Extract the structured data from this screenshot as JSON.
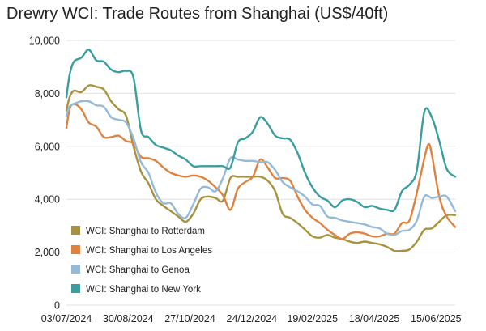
{
  "chart_data": {
    "type": "line",
    "title": "Drewry WCI: Trade Routes from Shanghai (US$/40ft)",
    "xlabel": "",
    "ylabel": "",
    "ylim": [
      0,
      10000
    ],
    "yticks": [
      0,
      2000,
      4000,
      6000,
      8000,
      10000
    ],
    "ytick_labels": [
      "0",
      "2,000",
      "4,000",
      "6,000",
      "8,000",
      "10,000"
    ],
    "xlim": [
      "03/07/2024",
      "03/07/2025"
    ],
    "xticks": [
      "03/07/2024",
      "30/08/2024",
      "27/10/2024",
      "24/12/2024",
      "19/02/2025",
      "18/04/2025",
      "15/06/2025"
    ],
    "grid": "horizontal",
    "legend_position": "bottom-left",
    "colors": {
      "rotterdam": "#a8923f",
      "los_angeles": "#e0823f",
      "genoa": "#94bada",
      "new_york": "#3a9ea0"
    },
    "series": [
      {
        "name": "WCI: Shanghai to Rotterdam",
        "color": "#a8923f",
        "points": [
          [
            "03/07/2024",
            7350
          ],
          [
            "06/07/2024",
            7850
          ],
          [
            "10/07/2024",
            8100
          ],
          [
            "17/07/2024",
            8050
          ],
          [
            "24/07/2024",
            8300
          ],
          [
            "31/07/2024",
            8250
          ],
          [
            "07/08/2024",
            8150
          ],
          [
            "14/08/2024",
            7700
          ],
          [
            "21/08/2024",
            7400
          ],
          [
            "28/08/2024",
            7150
          ],
          [
            "04/09/2024",
            6000
          ],
          [
            "11/09/2024",
            5050
          ],
          [
            "18/09/2024",
            4600
          ],
          [
            "25/09/2024",
            4000
          ],
          [
            "02/10/2024",
            3750
          ],
          [
            "09/10/2024",
            3550
          ],
          [
            "16/10/2024",
            3350
          ],
          [
            "23/10/2024",
            3150
          ],
          [
            "30/10/2024",
            3450
          ],
          [
            "06/11/2024",
            4000
          ],
          [
            "13/11/2024",
            4100
          ],
          [
            "20/11/2024",
            4050
          ],
          [
            "27/11/2024",
            3950
          ],
          [
            "04/12/2024",
            4800
          ],
          [
            "11/12/2024",
            4850
          ],
          [
            "18/12/2024",
            4850
          ],
          [
            "25/12/2024",
            4850
          ],
          [
            "01/01/2025",
            4850
          ],
          [
            "08/01/2025",
            4700
          ],
          [
            "15/01/2025",
            4300
          ],
          [
            "22/01/2025",
            3450
          ],
          [
            "29/01/2025",
            3300
          ],
          [
            "05/02/2025",
            3100
          ],
          [
            "12/02/2025",
            2850
          ],
          [
            "19/02/2025",
            2600
          ],
          [
            "26/02/2025",
            2550
          ],
          [
            "05/03/2025",
            2650
          ],
          [
            "12/03/2025",
            2550
          ],
          [
            "19/03/2025",
            2500
          ],
          [
            "26/03/2025",
            2400
          ],
          [
            "02/04/2025",
            2350
          ],
          [
            "09/04/2025",
            2400
          ],
          [
            "16/04/2025",
            2350
          ],
          [
            "23/04/2025",
            2300
          ],
          [
            "30/04/2025",
            2200
          ],
          [
            "07/05/2025",
            2050
          ],
          [
            "14/05/2025",
            2050
          ],
          [
            "21/05/2025",
            2100
          ],
          [
            "28/05/2025",
            2400
          ],
          [
            "04/06/2025",
            2850
          ],
          [
            "11/06/2025",
            2900
          ],
          [
            "18/06/2025",
            3150
          ],
          [
            "25/06/2025",
            3400
          ],
          [
            "03/07/2025",
            3400
          ]
        ]
      },
      {
        "name": "WCI: Shanghai to Los Angeles",
        "color": "#e0823f",
        "points": [
          [
            "03/07/2024",
            6700
          ],
          [
            "06/07/2024",
            7400
          ],
          [
            "10/07/2024",
            7600
          ],
          [
            "17/07/2024",
            7400
          ],
          [
            "24/07/2024",
            6900
          ],
          [
            "31/07/2024",
            6750
          ],
          [
            "07/08/2024",
            6350
          ],
          [
            "14/08/2024",
            6350
          ],
          [
            "21/08/2024",
            6400
          ],
          [
            "28/08/2024",
            6200
          ],
          [
            "04/09/2024",
            6100
          ],
          [
            "11/09/2024",
            5600
          ],
          [
            "18/09/2024",
            5550
          ],
          [
            "25/09/2024",
            5450
          ],
          [
            "02/10/2024",
            5200
          ],
          [
            "09/10/2024",
            5000
          ],
          [
            "16/10/2024",
            4900
          ],
          [
            "23/10/2024",
            4850
          ],
          [
            "30/10/2024",
            4900
          ],
          [
            "06/11/2024",
            4850
          ],
          [
            "13/11/2024",
            4700
          ],
          [
            "20/11/2024",
            4450
          ],
          [
            "27/11/2024",
            4150
          ],
          [
            "04/12/2024",
            3600
          ],
          [
            "11/12/2024",
            4400
          ],
          [
            "18/12/2024",
            4650
          ],
          [
            "25/12/2024",
            4850
          ],
          [
            "01/01/2025",
            5500
          ],
          [
            "08/01/2025",
            5200
          ],
          [
            "15/01/2025",
            4800
          ],
          [
            "22/01/2025",
            4800
          ],
          [
            "29/01/2025",
            4700
          ],
          [
            "05/02/2025",
            4100
          ],
          [
            "12/02/2025",
            3600
          ],
          [
            "19/02/2025",
            3300
          ],
          [
            "26/02/2025",
            3100
          ],
          [
            "05/03/2025",
            2850
          ],
          [
            "12/03/2025",
            2650
          ],
          [
            "19/03/2025",
            2500
          ],
          [
            "26/03/2025",
            2700
          ],
          [
            "02/04/2025",
            2750
          ],
          [
            "09/04/2025",
            2700
          ],
          [
            "16/04/2025",
            2600
          ],
          [
            "23/04/2025",
            2600
          ],
          [
            "30/04/2025",
            2700
          ],
          [
            "07/05/2025",
            2700
          ],
          [
            "14/05/2025",
            3100
          ],
          [
            "21/05/2025",
            3200
          ],
          [
            "28/05/2025",
            4250
          ],
          [
            "04/06/2025",
            5550
          ],
          [
            "08/06/2025",
            6080
          ],
          [
            "11/06/2025",
            5700
          ],
          [
            "18/06/2025",
            4100
          ],
          [
            "25/06/2025",
            3350
          ],
          [
            "03/07/2025",
            2950
          ]
        ]
      },
      {
        "name": "WCI: Shanghai to Genoa",
        "color": "#94bada",
        "points": [
          [
            "03/07/2024",
            7150
          ],
          [
            "06/07/2024",
            7500
          ],
          [
            "10/07/2024",
            7600
          ],
          [
            "17/07/2024",
            7700
          ],
          [
            "24/07/2024",
            7700
          ],
          [
            "31/07/2024",
            7550
          ],
          [
            "07/08/2024",
            7500
          ],
          [
            "14/08/2024",
            7100
          ],
          [
            "21/08/2024",
            7000
          ],
          [
            "28/08/2024",
            6900
          ],
          [
            "04/09/2024",
            6300
          ],
          [
            "11/09/2024",
            5400
          ],
          [
            "18/09/2024",
            5000
          ],
          [
            "25/09/2024",
            4250
          ],
          [
            "02/10/2024",
            3850
          ],
          [
            "09/10/2024",
            3850
          ],
          [
            "16/10/2024",
            3450
          ],
          [
            "23/10/2024",
            3300
          ],
          [
            "30/10/2024",
            3800
          ],
          [
            "06/11/2024",
            4400
          ],
          [
            "13/11/2024",
            4450
          ],
          [
            "20/11/2024",
            4300
          ],
          [
            "27/11/2024",
            4800
          ],
          [
            "04/12/2024",
            5550
          ],
          [
            "11/12/2024",
            5500
          ],
          [
            "18/12/2024",
            5450
          ],
          [
            "25/12/2024",
            5450
          ],
          [
            "01/01/2025",
            5400
          ],
          [
            "08/01/2025",
            5400
          ],
          [
            "15/01/2025",
            5100
          ],
          [
            "22/01/2025",
            4650
          ],
          [
            "29/01/2025",
            4450
          ],
          [
            "05/02/2025",
            4300
          ],
          [
            "12/02/2025",
            4100
          ],
          [
            "19/02/2025",
            3800
          ],
          [
            "26/02/2025",
            3750
          ],
          [
            "05/03/2025",
            3350
          ],
          [
            "12/03/2025",
            3300
          ],
          [
            "19/03/2025",
            3200
          ],
          [
            "26/03/2025",
            3150
          ],
          [
            "02/04/2025",
            3100
          ],
          [
            "09/04/2025",
            3050
          ],
          [
            "16/04/2025",
            2950
          ],
          [
            "23/04/2025",
            2900
          ],
          [
            "30/04/2025",
            2700
          ],
          [
            "07/05/2025",
            2650
          ],
          [
            "14/05/2025",
            2800
          ],
          [
            "21/05/2025",
            2850
          ],
          [
            "28/05/2025",
            3200
          ],
          [
            "04/06/2025",
            4100
          ],
          [
            "11/06/2025",
            4050
          ],
          [
            "18/06/2025",
            4100
          ],
          [
            "25/06/2025",
            4100
          ],
          [
            "03/07/2025",
            3550
          ]
        ]
      },
      {
        "name": "WCI: Shanghai to New York",
        "color": "#3a9ea0",
        "points": [
          [
            "03/07/2024",
            7850
          ],
          [
            "06/07/2024",
            8700
          ],
          [
            "10/07/2024",
            9200
          ],
          [
            "17/07/2024",
            9350
          ],
          [
            "24/07/2024",
            9650
          ],
          [
            "31/07/2024",
            9250
          ],
          [
            "07/08/2024",
            9200
          ],
          [
            "14/08/2024",
            8900
          ],
          [
            "21/08/2024",
            8800
          ],
          [
            "28/08/2024",
            8850
          ],
          [
            "04/09/2024",
            8600
          ],
          [
            "11/09/2024",
            6600
          ],
          [
            "18/09/2024",
            6350
          ],
          [
            "25/09/2024",
            6050
          ],
          [
            "02/10/2024",
            5950
          ],
          [
            "09/10/2024",
            5850
          ],
          [
            "16/10/2024",
            5650
          ],
          [
            "23/10/2024",
            5500
          ],
          [
            "30/10/2024",
            5250
          ],
          [
            "06/11/2024",
            5250
          ],
          [
            "13/11/2024",
            5250
          ],
          [
            "20/11/2024",
            5250
          ],
          [
            "27/11/2024",
            5250
          ],
          [
            "04/12/2024",
            5200
          ],
          [
            "11/12/2024",
            6150
          ],
          [
            "18/12/2024",
            6300
          ],
          [
            "25/12/2024",
            6550
          ],
          [
            "01/01/2025",
            7100
          ],
          [
            "08/01/2025",
            6850
          ],
          [
            "15/01/2025",
            6400
          ],
          [
            "22/01/2025",
            6300
          ],
          [
            "29/01/2025",
            6250
          ],
          [
            "05/02/2025",
            5750
          ],
          [
            "12/02/2025",
            5000
          ],
          [
            "19/02/2025",
            4450
          ],
          [
            "26/02/2025",
            4100
          ],
          [
            "05/03/2025",
            3950
          ],
          [
            "12/03/2025",
            3700
          ],
          [
            "19/03/2025",
            3950
          ],
          [
            "26/03/2025",
            4000
          ],
          [
            "02/04/2025",
            3900
          ],
          [
            "09/04/2025",
            3700
          ],
          [
            "16/04/2025",
            3750
          ],
          [
            "23/04/2025",
            3650
          ],
          [
            "30/04/2025",
            3600
          ],
          [
            "07/05/2025",
            3600
          ],
          [
            "14/05/2025",
            4300
          ],
          [
            "21/05/2025",
            4550
          ],
          [
            "28/05/2025",
            5100
          ],
          [
            "04/06/2025",
            7300
          ],
          [
            "11/06/2025",
            7100
          ],
          [
            "18/06/2025",
            6200
          ],
          [
            "25/06/2025",
            5150
          ],
          [
            "03/07/2025",
            4850
          ]
        ]
      }
    ]
  }
}
